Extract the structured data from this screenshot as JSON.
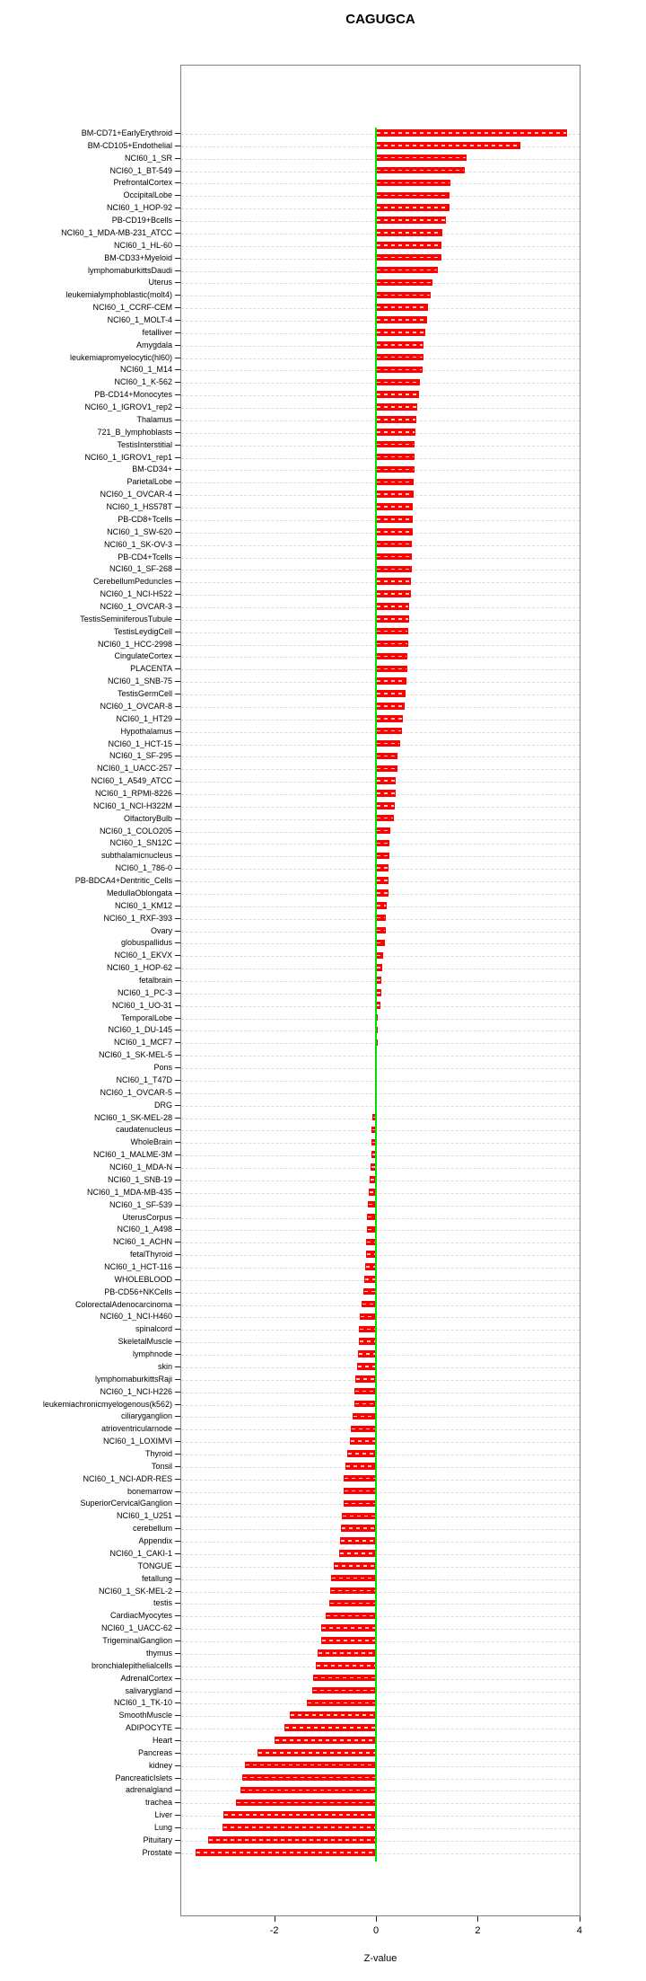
{
  "title": "CAGUGCA",
  "xlabel": "Z-value",
  "colors": {
    "bar": "#ff0000",
    "zero_line": "#00df00",
    "gridline": "#dcdcdc",
    "frame": "#828282",
    "text": "#000000"
  },
  "chart_data": {
    "type": "bar",
    "orientation": "horizontal",
    "title": "CAGUGCA",
    "xlabel": "Z-value",
    "ylabel": "",
    "xlim": [
      -3.84,
      4.02
    ],
    "x_ticks": [
      -2,
      0,
      2,
      4
    ],
    "grid": true,
    "zero_reference_line": true,
    "legend": "none",
    "categories": [
      "BM-CD71+EarlyErythroid",
      "BM-CD105+Endothelial",
      "NCI60_1_SR",
      "NCI60_1_BT-549",
      "PrefrontalCortex",
      "OccipitalLobe",
      "NCI60_1_HOP-92",
      "PB-CD19+Bcells",
      "NCI60_1_MDA-MB-231_ATCC",
      "NCI60_1_HL-60",
      "BM-CD33+Myeloid",
      "lymphomaburkittsDaudi",
      "Uterus",
      "leukemialymphoblastic(molt4)",
      "NCI60_1_CCRF-CEM",
      "NCI60_1_MOLT-4",
      "fetalliver",
      "Amygdala",
      "leukemiapromyelocytic(hl60)",
      "NCI60_1_M14",
      "NCI60_1_K-562",
      "PB-CD14+Monocytes",
      "NCI60_1_IGROV1_rep2",
      "Thalamus",
      "721_B_lymphoblasts",
      "TestisInterstitial",
      "NCI60_1_IGROV1_rep1",
      "BM-CD34+",
      "ParietalLobe",
      "NCI60_1_OVCAR-4",
      "NCI60_1_HS578T",
      "PB-CD8+Tcells",
      "NCI60_1_SW-620",
      "NCI60_1_SK-OV-3",
      "PB-CD4+Tcells",
      "NCI60_1_SF-268",
      "CerebellumPeduncles",
      "NCI60_1_NCI-H522",
      "NCI60_1_OVCAR-3",
      "TestisSeminiferousTubule",
      "TestisLeydigCell",
      "NCI60_1_HCC-2998",
      "CingulateCortex",
      "PLACENTA",
      "NCI60_1_SNB-75",
      "TestisGermCell",
      "NCI60_1_OVCAR-8",
      "NCI60_1_HT29",
      "Hypothalamus",
      "NCI60_1_HCT-15",
      "NCI60_1_SF-295",
      "NCI60_1_UACC-257",
      "NCI60_1_A549_ATCC",
      "NCI60_1_RPMI-8226",
      "NCI60_1_NCI-H322M",
      "OlfactoryBulb",
      "NCI60_1_COLO205",
      "NCI60_1_SN12C",
      "subthalamicnucleus",
      "NCI60_1_786-0",
      "PB-BDCA4+Dentritic_Cells",
      "MedullaOblongata",
      "NCI60_1_KM12",
      "NCI60_1_RXF-393",
      "Ovary",
      "globuspallidus",
      "NCI60_1_EKVX",
      "NCI60_1_HOP-62",
      "fetalbrain",
      "NCI60_1_PC-3",
      "NCI60_1_UO-31",
      "TemporalLobe",
      "NCI60_1_DU-145",
      "NCI60_1_MCF7",
      "NCI60_1_SK-MEL-5",
      "Pons",
      "NCI60_1_T47D",
      "NCI60_1_OVCAR-5",
      "DRG",
      "NCI60_1_SK-MEL-28",
      "caudatenucleus",
      "WholeBrain",
      "NCI60_1_MALME-3M",
      "NCI60_1_MDA-N",
      "NCI60_1_SNB-19",
      "NCI60_1_MDA-MB-435",
      "NCI60_1_SF-539",
      "UterusCorpus",
      "NCI60_1_A498",
      "NCI60_1_ACHN",
      "fetalThyroid",
      "NCI60_1_HCT-116",
      "WHOLEBLOOD",
      "PB-CD56+NKCells",
      "ColorectalAdenocarcinoma",
      "NCI60_1_NCI-H460",
      "spinalcord",
      "SkeletalMuscle",
      "lymphnode",
      "skin",
      "lymphomaburkittsRaji",
      "NCI60_1_NCI-H226",
      "leukemiachronicmyelogenous(k562)",
      "ciliaryganglion",
      "atrioventricularnode",
      "NCI60_1_LOXIMVI",
      "Thyroid",
      "Tonsil",
      "NCI60_1_NCI-ADR-RES",
      "bonemarrow",
      "SuperiorCervicalGanglion",
      "NCI60_1_U251",
      "cerebellum",
      "Appendix",
      "NCI60_1_CAKI-1",
      "TONGUE",
      "fetallung",
      "NCI60_1_SK-MEL-2",
      "testis",
      "CardiacMyocytes",
      "NCI60_1_UACC-62",
      "TrigeminalGanglion",
      "thymus",
      "bronchialepithelialcells",
      "AdrenalCortex",
      "salivarygland",
      "NCI60_1_TK-10",
      "SmoothMuscle",
      "ADIPOCYTE",
      "Heart",
      "Pancreas",
      "kidney",
      "PancreaticIslets",
      "adrenalgland",
      "trachea",
      "Liver",
      "Lung",
      "Pituitary",
      "Prostate"
    ],
    "values": [
      3.76,
      2.84,
      1.78,
      1.74,
      1.46,
      1.45,
      1.44,
      1.38,
      1.31,
      1.29,
      1.28,
      1.22,
      1.11,
      1.08,
      1.02,
      1.0,
      0.97,
      0.94,
      0.93,
      0.91,
      0.87,
      0.84,
      0.82,
      0.79,
      0.77,
      0.76,
      0.75,
      0.75,
      0.74,
      0.74,
      0.73,
      0.72,
      0.72,
      0.71,
      0.7,
      0.7,
      0.69,
      0.68,
      0.66,
      0.65,
      0.64,
      0.63,
      0.62,
      0.61,
      0.6,
      0.58,
      0.56,
      0.53,
      0.51,
      0.48,
      0.43,
      0.42,
      0.39,
      0.38,
      0.37,
      0.36,
      0.28,
      0.27,
      0.26,
      0.25,
      0.24,
      0.24,
      0.22,
      0.2,
      0.19,
      0.18,
      0.14,
      0.12,
      0.11,
      0.1,
      0.09,
      0.04,
      0.03,
      0.03,
      0.02,
      0.02,
      0.01,
      0.0,
      -0.01,
      -0.07,
      -0.08,
      -0.09,
      -0.09,
      -0.1,
      -0.12,
      -0.14,
      -0.16,
      -0.17,
      -0.18,
      -0.2,
      -0.2,
      -0.22,
      -0.23,
      -0.25,
      -0.28,
      -0.32,
      -0.34,
      -0.34,
      -0.35,
      -0.37,
      -0.41,
      -0.42,
      -0.43,
      -0.45,
      -0.5,
      -0.52,
      -0.57,
      -0.6,
      -0.63,
      -0.64,
      -0.64,
      -0.67,
      -0.68,
      -0.7,
      -0.72,
      -0.83,
      -0.89,
      -0.9,
      -0.92,
      -0.98,
      -1.07,
      -1.07,
      -1.14,
      -1.19,
      -1.24,
      -1.26,
      -1.35,
      -1.69,
      -1.8,
      -1.99,
      -2.33,
      -2.57,
      -2.62,
      -2.66,
      -2.76,
      -2.99,
      -3.01,
      -3.29,
      -3.55
    ]
  }
}
